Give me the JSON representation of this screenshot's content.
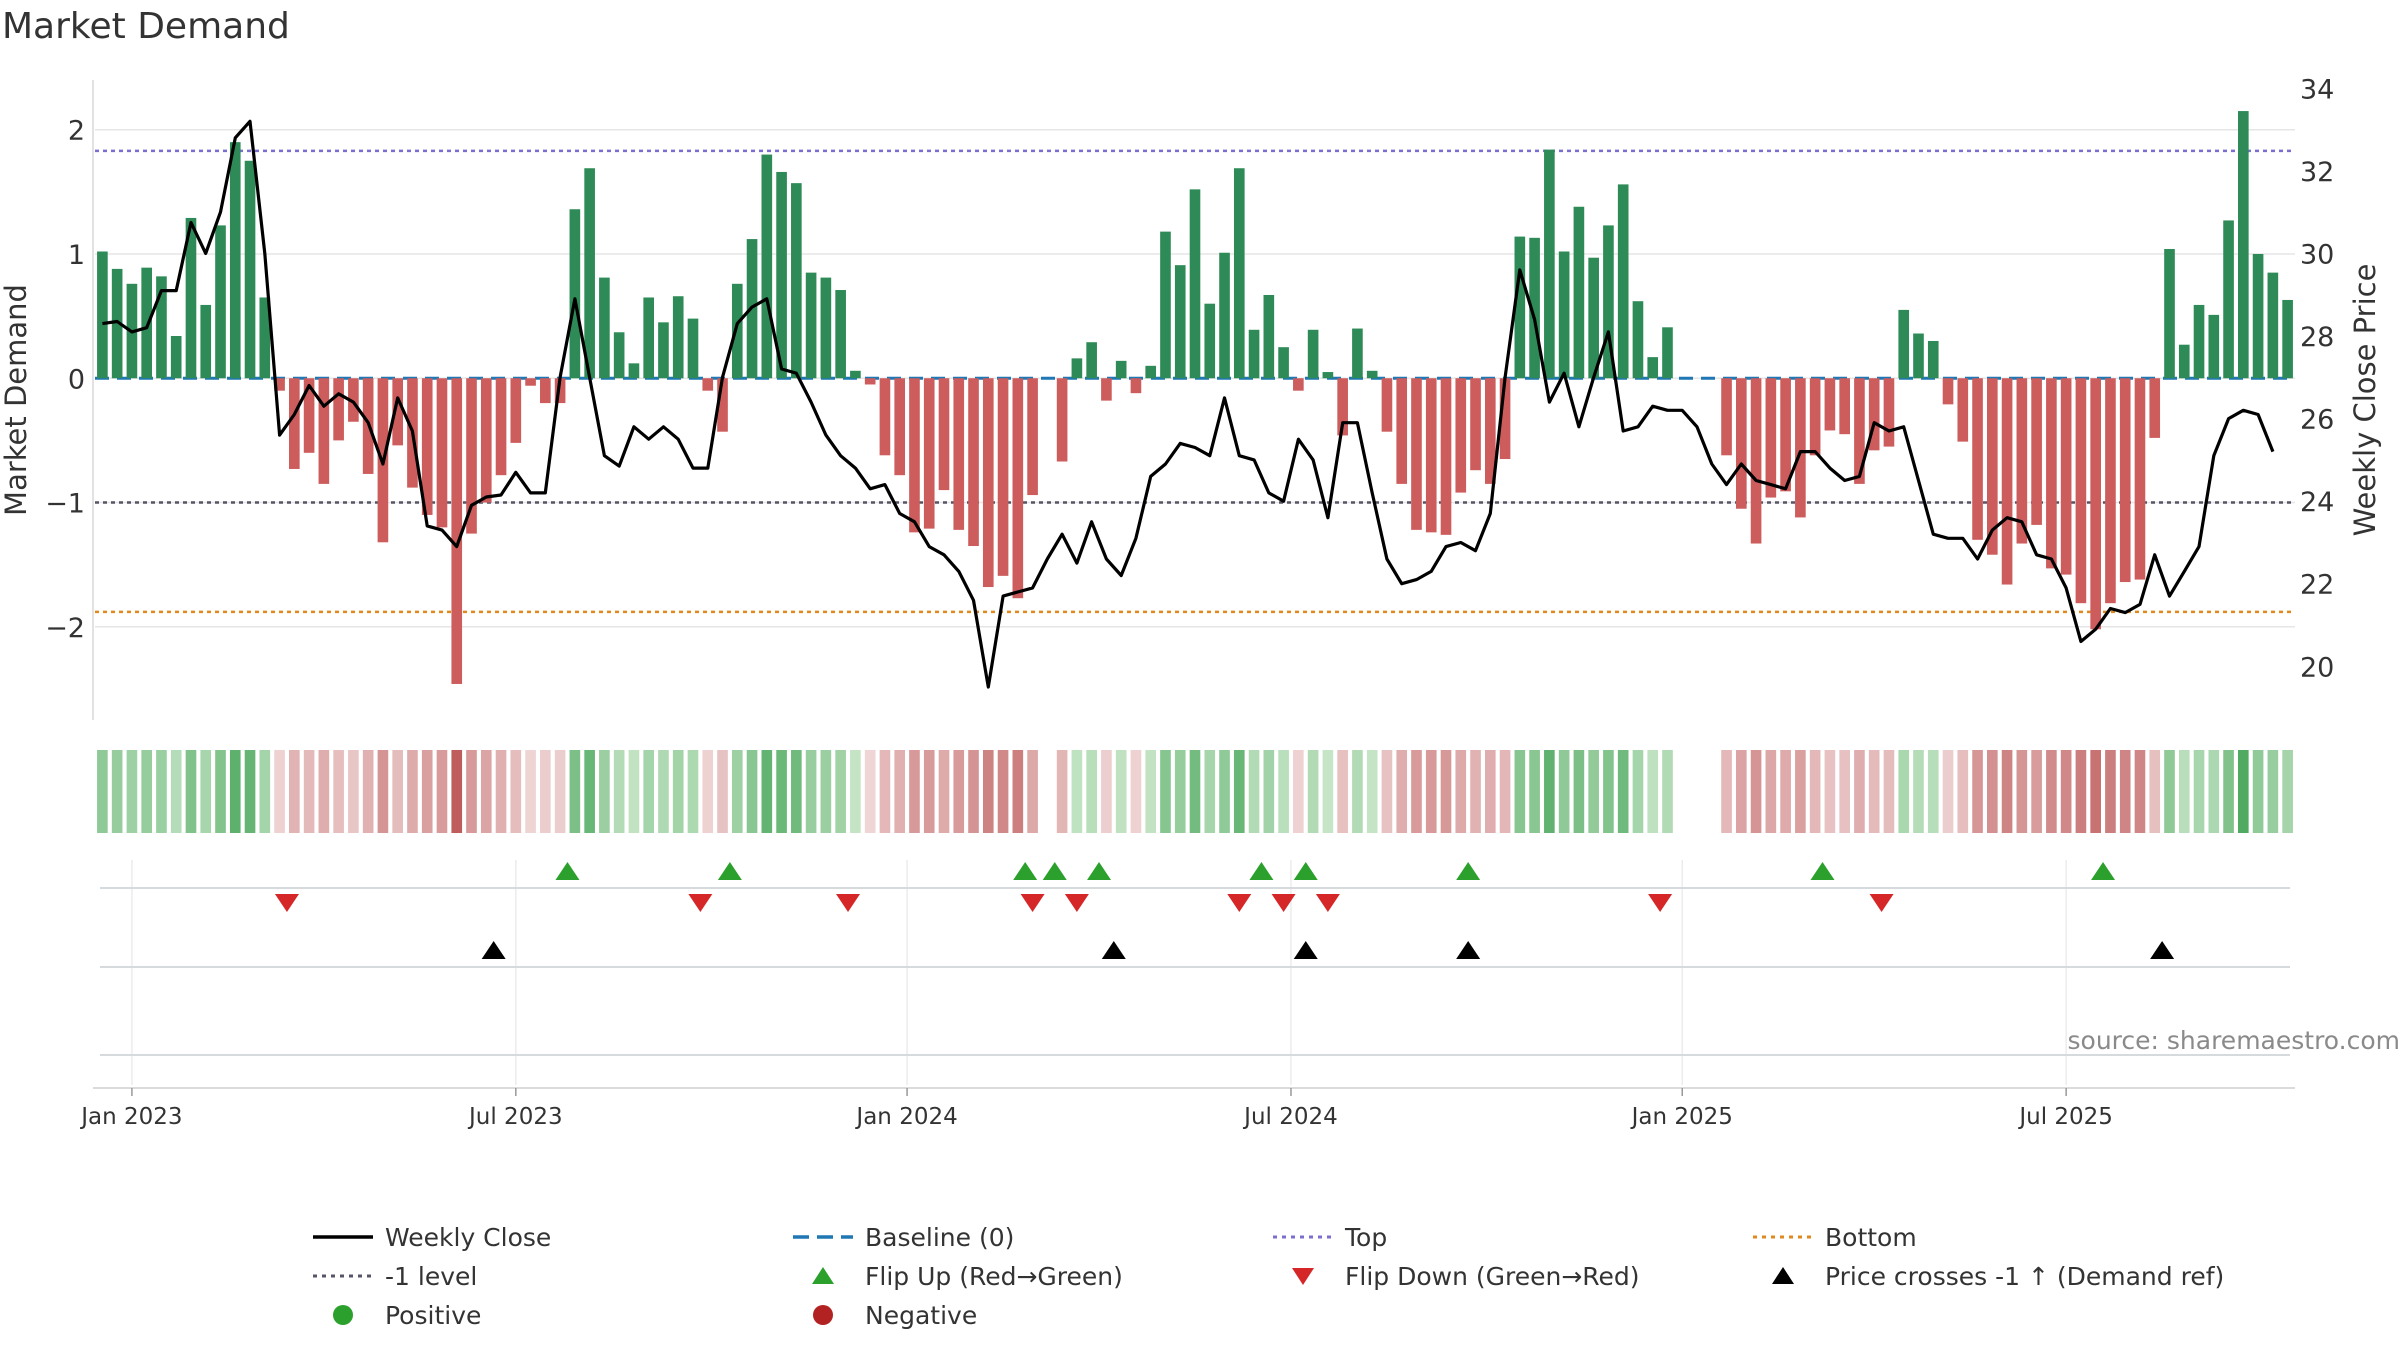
{
  "chart_data": {
    "type": "bar",
    "title": "Market Demand",
    "ylabel": "Market Demand",
    "y2label": "Weekly Close Price",
    "source": "source: sharemaestro.com",
    "ylim": [
      -2.75,
      2.4
    ],
    "y2lim": [
      18.7,
      34.2
    ],
    "yticks": [
      2,
      1,
      0,
      -1,
      -2
    ],
    "ytick_labels": [
      "2",
      "1",
      "0",
      "−1",
      "−2"
    ],
    "y2ticks": [
      34,
      32,
      30,
      28,
      26,
      24,
      22,
      20
    ],
    "ref_lines": {
      "top": 1.83,
      "bottom": -1.88,
      "minus_one": -1.0,
      "baseline": 0
    },
    "xticks": [
      {
        "label": "Jan 2023",
        "week": 2
      },
      {
        "label": "Jul 2023",
        "week": 28
      },
      {
        "label": "Jan 2024",
        "week": 54.5
      },
      {
        "label": "Jul 2024",
        "week": 80.5
      },
      {
        "label": "Jan 2025",
        "week": 107
      },
      {
        "label": "Jul 2025",
        "week": 133
      }
    ],
    "demand": [
      1.02,
      0.88,
      0.76,
      0.89,
      0.82,
      0.34,
      1.29,
      0.59,
      1.23,
      1.9,
      1.75,
      0.65,
      -0.1,
      -0.73,
      -0.6,
      -0.85,
      -0.5,
      -0.35,
      -0.77,
      -1.32,
      -0.54,
      -0.88,
      -1.1,
      -1.2,
      -2.46,
      -1.25,
      -1.0,
      -0.78,
      -0.52,
      -0.06,
      -0.2,
      -0.2,
      1.36,
      1.69,
      0.81,
      0.37,
      0.12,
      0.65,
      0.45,
      0.66,
      0.48,
      -0.1,
      -0.43,
      0.76,
      1.12,
      1.8,
      1.66,
      1.57,
      0.85,
      0.81,
      0.71,
      0.06,
      -0.05,
      -0.62,
      -0.78,
      -1.24,
      -1.21,
      -0.9,
      -1.22,
      -1.35,
      -1.68,
      -1.59,
      -1.77,
      -0.94,
      0,
      -0.67,
      0.16,
      0.29,
      -0.18,
      0.14,
      -0.12,
      0.1,
      1.18,
      0.91,
      1.52,
      0.6,
      1.01,
      1.69,
      0.39,
      0.67,
      0.25,
      -0.1,
      0.39,
      0.05,
      -0.46,
      0.4,
      0.06,
      -0.43,
      -0.85,
      -1.22,
      -1.24,
      -1.26,
      -0.92,
      -0.74,
      -0.85,
      -0.65,
      1.14,
      1.13,
      1.84,
      1.02,
      1.38,
      0.97,
      1.23,
      1.56,
      0.62,
      0.17,
      0.41,
      0,
      0,
      0,
      -0.62,
      -1.05,
      -1.33,
      -0.96,
      -0.91,
      -1.12,
      -0.62,
      -0.42,
      -0.45,
      -0.85,
      -0.58,
      -0.55,
      0.55,
      0.36,
      0.3,
      -0.21,
      -0.51,
      -1.3,
      -1.42,
      -1.66,
      -1.33,
      -1.18,
      -1.53,
      -1.58,
      -1.81,
      -2.02,
      -1.81,
      -1.64,
      -1.62,
      -0.48,
      1.04,
      0.27,
      0.59,
      0.51,
      1.27,
      2.15,
      1.0,
      0.85,
      0.63
    ],
    "weekly_close": [
      28.3,
      28.35,
      28.1,
      28.2,
      29.1,
      29.1,
      30.75,
      30.0,
      31.0,
      32.8,
      33.2,
      30.0,
      25.6,
      26.1,
      26.8,
      26.3,
      26.6,
      26.4,
      25.9,
      24.9,
      26.5,
      25.7,
      23.4,
      23.3,
      22.9,
      23.9,
      24.1,
      24.15,
      24.7,
      24.2,
      24.2,
      27.0,
      28.9,
      27.0,
      25.1,
      24.85,
      25.8,
      25.5,
      25.8,
      25.5,
      24.8,
      24.8,
      27.0,
      28.3,
      28.7,
      28.9,
      27.2,
      27.1,
      26.4,
      25.6,
      25.1,
      24.8,
      24.3,
      24.4,
      23.7,
      23.5,
      22.9,
      22.7,
      22.3,
      21.6,
      19.5,
      21.7,
      21.8,
      21.9,
      22.6,
      23.2,
      22.5,
      23.5,
      22.6,
      22.2,
      23.1,
      24.6,
      24.9,
      25.4,
      25.3,
      25.1,
      26.5,
      25.1,
      25.0,
      24.2,
      24.0,
      25.5,
      25.0,
      23.6,
      25.9,
      25.9,
      24.2,
      22.6,
      22.0,
      22.1,
      22.3,
      22.9,
      23.0,
      22.8,
      23.7,
      27.0,
      29.6,
      28.4,
      26.4,
      27.1,
      25.8,
      27.0,
      28.1,
      25.7,
      25.8,
      26.3,
      26.2,
      26.2,
      25.8,
      24.9,
      24.4,
      24.9,
      24.5,
      24.4,
      24.3,
      25.2,
      25.2,
      24.8,
      24.5,
      24.6,
      25.9,
      25.7,
      25.8,
      24.5,
      23.2,
      23.1,
      23.1,
      22.6,
      23.3,
      23.6,
      23.5,
      22.7,
      22.6,
      21.9,
      20.6,
      20.9,
      21.4,
      21.3,
      21.5,
      22.7,
      21.7,
      22.3,
      22.9,
      25.1,
      26.0,
      26.2,
      26.1,
      25.2
    ],
    "flip_up_weeks": [
      31.5,
      42.5,
      62.5,
      64.5,
      67.5,
      78.5,
      81.5,
      92.5,
      116.5,
      135.5
    ],
    "flip_down_weeks": [
      12.5,
      40.5,
      50.5,
      63,
      66,
      77,
      80,
      83,
      105.5,
      120.5
    ],
    "price_cross_weeks": [
      26.5,
      68.5,
      81.5,
      92.5,
      139.5
    ],
    "legend": [
      {
        "label": "Weekly Close",
        "marker": "solid-line",
        "color": "#000000"
      },
      {
        "label": "Baseline (0)",
        "marker": "dash-line",
        "color": "#1f77b4"
      },
      {
        "label": "Top",
        "marker": "dot-line",
        "color": "#7a6fd0"
      },
      {
        "label": "Bottom",
        "marker": "dot-line",
        "color": "#e08a1e"
      },
      {
        "label": "-1 level",
        "marker": "dot-line",
        "color": "#555566"
      },
      {
        "label": "Flip Up (Red→Green)",
        "marker": "triangle-up",
        "color": "#2ca02c"
      },
      {
        "label": "Flip Down (Green→Red)",
        "marker": "triangle-down",
        "color": "#d62728"
      },
      {
        "label": "Price crosses -1 ↑ (Demand ref)",
        "marker": "triangle-up",
        "color": "#000000"
      },
      {
        "label": "Positive",
        "marker": "circle",
        "color": "#2ca02c"
      },
      {
        "label": "Negative",
        "marker": "circle",
        "color": "#b22222"
      }
    ]
  },
  "colors": {
    "positive_bar": "#2e8b57",
    "negative_bar": "#cd5c5c",
    "price_line": "#000000",
    "grid": "#e6e6e6"
  }
}
